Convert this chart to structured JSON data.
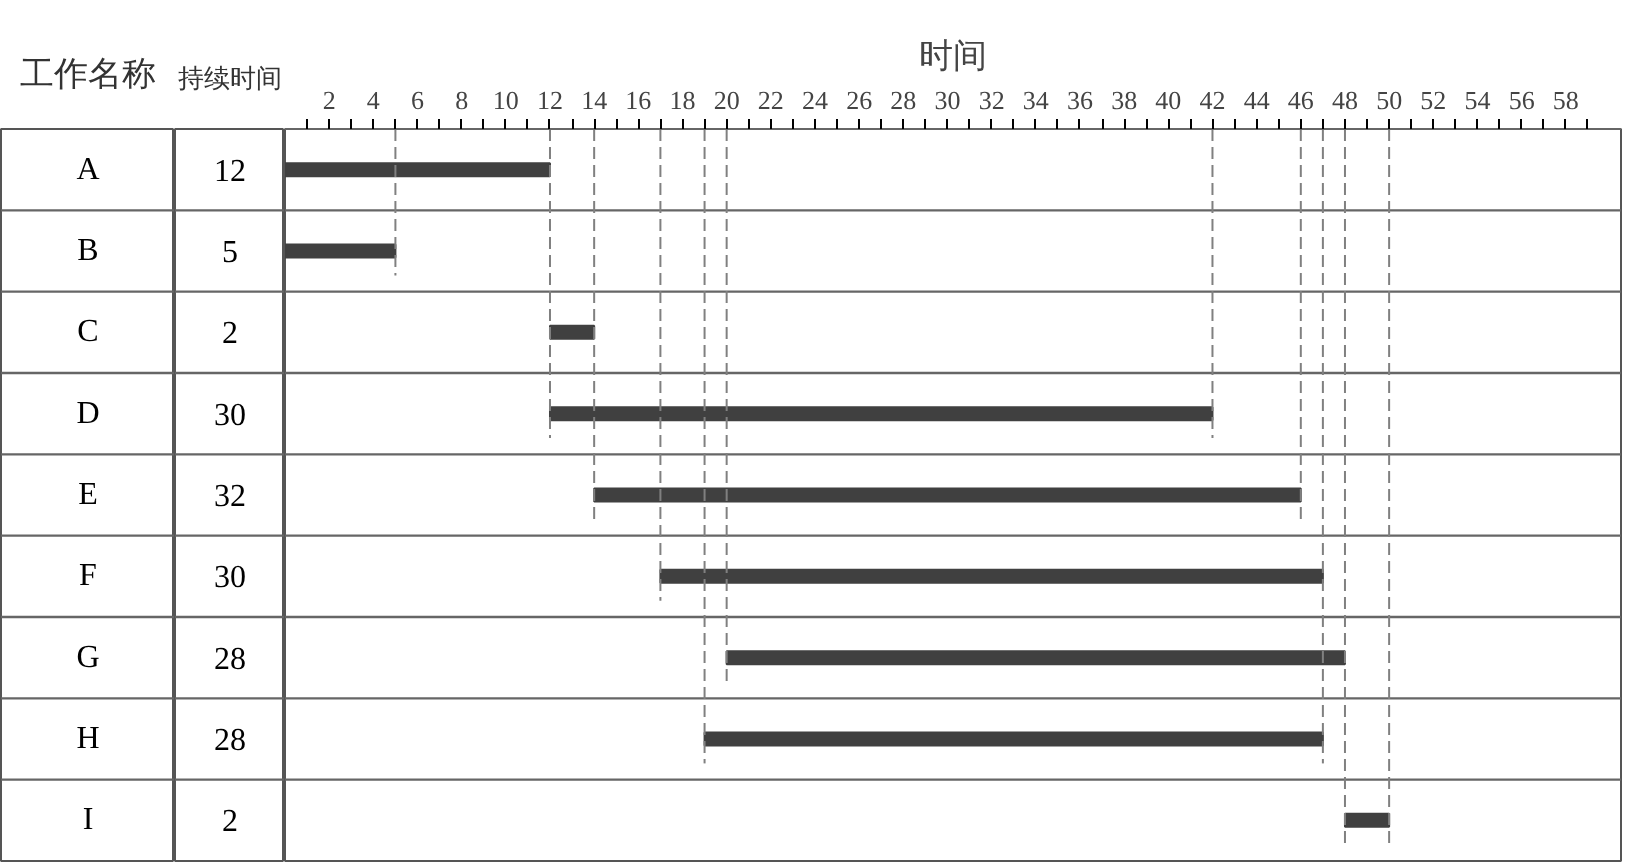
{
  "chart_data": {
    "type": "bar",
    "orientation": "horizontal",
    "ylabel": "工作名称",
    "xlabel": "时间",
    "annotations": [
      "持续时间"
    ],
    "categories": [
      "A",
      "B",
      "C",
      "D",
      "E",
      "F",
      "G",
      "H",
      "I"
    ],
    "base": [
      0,
      0,
      12,
      12,
      14,
      17,
      20,
      19,
      48
    ],
    "values": [
      12,
      5,
      2,
      30,
      32,
      30,
      28,
      28,
      2
    ],
    "color": "#404040",
    "data_labels": true,
    "xlim": [
      0,
      60.5
    ],
    "xticks": [
      {
        "value": 1,
        "label": null
      },
      2,
      {
        "value": 3,
        "label": null
      },
      4,
      {
        "value": 5,
        "label": null
      },
      6,
      {
        "value": 7,
        "label": null
      },
      8,
      {
        "value": 9,
        "label": null
      },
      10,
      {
        "value": 11,
        "label": null
      },
      12,
      {
        "value": 13,
        "label": null
      },
      14,
      {
        "value": 15,
        "label": null
      },
      16,
      {
        "value": 17,
        "label": null
      },
      18,
      {
        "value": 19,
        "label": null
      },
      20,
      {
        "value": 21,
        "label": null
      },
      22,
      {
        "value": 23,
        "label": null
      },
      24,
      {
        "value": 25,
        "label": null
      },
      26,
      {
        "value": 27,
        "label": null
      },
      28,
      {
        "value": 29,
        "label": null
      },
      30,
      {
        "value": 31,
        "label": null
      },
      32,
      {
        "value": 33,
        "label": null
      },
      34,
      {
        "value": 35,
        "label": null
      },
      36,
      {
        "value": 37,
        "label": null
      },
      38,
      {
        "value": 39,
        "label": null
      },
      40,
      {
        "value": 41,
        "label": null
      },
      42,
      {
        "value": 43,
        "label": null
      },
      44,
      {
        "value": 45,
        "label": null
      },
      46,
      {
        "value": 47,
        "label": null
      },
      48,
      {
        "value": 49,
        "label": null
      },
      50,
      {
        "value": 51,
        "label": null
      },
      52,
      {
        "value": 53,
        "label": null
      },
      54,
      {
        "value": 55,
        "label": null
      },
      56,
      {
        "value": 57,
        "label": null
      },
      58,
      {
        "value": 59,
        "label": null
      }
    ],
    "ref_lines": [
      {
        "axis": "x",
        "value": 5,
        "line_style": "dashed",
        "color": "#808080"
      },
      {
        "axis": "x",
        "value": 12,
        "line_style": "dashed",
        "color": "#808080"
      },
      {
        "axis": "x",
        "value": 14,
        "line_style": "dashed",
        "color": "#808080"
      },
      {
        "axis": "x",
        "value": 17,
        "line_style": "dashed",
        "color": "#808080"
      },
      {
        "axis": "x",
        "value": 19,
        "line_style": "dashed",
        "color": "#808080"
      },
      {
        "axis": "x",
        "value": 20,
        "line_style": "dashed",
        "color": "#808080"
      },
      {
        "axis": "x",
        "value": 42,
        "line_style": "dashed",
        "color": "#808080"
      },
      {
        "axis": "x",
        "value": 46,
        "line_style": "dashed",
        "color": "#808080"
      },
      {
        "axis": "x",
        "value": 47,
        "line_style": "dashed",
        "color": "#808080"
      },
      {
        "axis": "x",
        "value": 48,
        "line_style": "dashed",
        "color": "#808080"
      },
      {
        "axis": "x",
        "value": 50,
        "line_style": "dashed",
        "color": "#808080"
      }
    ]
  }
}
